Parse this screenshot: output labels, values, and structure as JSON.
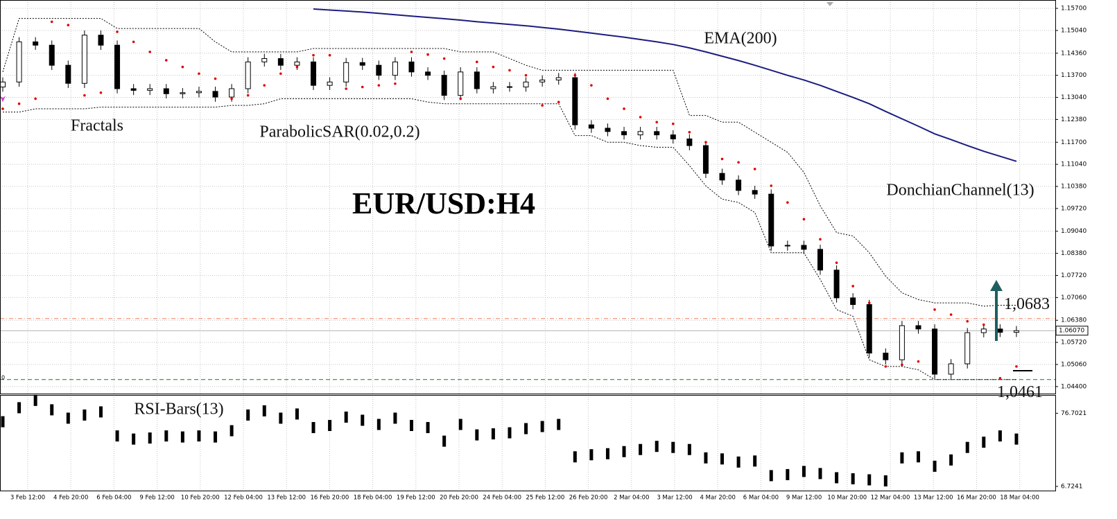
{
  "chart_data": {
    "type": "candlestick",
    "title": "EUR/USD:H4",
    "grid": true,
    "up_color": "#ffffff",
    "down_color": "#000000",
    "categories": [
      "3 Feb 12:00",
      "4 Feb 20:00",
      "6 Feb 04:00",
      "9 Feb 12:00",
      "10 Feb 20:00",
      "12 Feb 04:00",
      "13 Feb 12:00",
      "16 Feb 20:00",
      "18 Feb 04:00",
      "19 Feb 12:00",
      "20 Feb 20:00",
      "24 Feb 04:00",
      "25 Feb 12:00",
      "26 Feb 20:00",
      "2 Mar 04:00",
      "3 Mar 12:00",
      "4 Mar 20:00",
      "6 Mar 04:00",
      "9 Mar 12:00",
      "10 Mar 20:00",
      "12 Mar 04:00",
      "13 Mar 12:00",
      "16 Mar 20:00",
      "18 Mar 04:00"
    ],
    "candles": [
      [
        1.1335,
        1.1364,
        1.1321,
        1.135
      ],
      [
        1.135,
        1.1484,
        1.1336,
        1.147
      ],
      [
        1.147,
        1.1484,
        1.1446,
        1.146
      ],
      [
        1.146,
        1.1474,
        1.1386,
        1.14
      ],
      [
        1.14,
        1.1414,
        1.1332,
        1.1346
      ],
      [
        1.1346,
        1.1504,
        1.1332,
        1.149
      ],
      [
        1.149,
        1.1504,
        1.1446,
        1.146
      ],
      [
        1.146,
        1.1474,
        1.1316,
        1.133
      ],
      [
        1.133,
        1.1344,
        1.1311,
        1.1325
      ],
      [
        1.1325,
        1.1344,
        1.1311,
        1.133
      ],
      [
        1.133,
        1.1344,
        1.1301,
        1.1315
      ],
      [
        1.1315,
        1.1332,
        1.1301,
        1.1318
      ],
      [
        1.1318,
        1.1336,
        1.1304,
        1.1322
      ],
      [
        1.1322,
        1.1336,
        1.1291,
        1.1305
      ],
      [
        1.1305,
        1.1344,
        1.1291,
        1.133
      ],
      [
        1.133,
        1.1424,
        1.1316,
        1.141
      ],
      [
        1.141,
        1.1434,
        1.1396,
        1.142
      ],
      [
        1.142,
        1.1434,
        1.1386,
        1.14
      ],
      [
        1.14,
        1.1424,
        1.1386,
        1.141
      ],
      [
        1.141,
        1.1424,
        1.1326,
        1.134
      ],
      [
        1.134,
        1.1364,
        1.1326,
        1.135
      ],
      [
        1.135,
        1.1422,
        1.1336,
        1.1408
      ],
      [
        1.1408,
        1.1422,
        1.1386,
        1.14
      ],
      [
        1.14,
        1.1414,
        1.1356,
        1.137
      ],
      [
        1.137,
        1.1424,
        1.1356,
        1.141
      ],
      [
        1.141,
        1.1424,
        1.1366,
        1.138
      ],
      [
        1.138,
        1.1394,
        1.1356,
        1.137
      ],
      [
        1.137,
        1.1384,
        1.1296,
        1.131
      ],
      [
        1.131,
        1.1394,
        1.1296,
        1.138
      ],
      [
        1.138,
        1.1394,
        1.1316,
        1.133
      ],
      [
        1.133,
        1.135,
        1.1316,
        1.1336
      ],
      [
        1.1336,
        1.135,
        1.1321,
        1.1335
      ],
      [
        1.1335,
        1.1364,
        1.1321,
        1.135
      ],
      [
        1.135,
        1.137,
        1.1336,
        1.1356
      ],
      [
        1.1356,
        1.1377,
        1.1342,
        1.1363
      ],
      [
        1.1363,
        1.1377,
        1.1208,
        1.1222
      ],
      [
        1.1222,
        1.1236,
        1.1198,
        1.1212
      ],
      [
        1.1212,
        1.1226,
        1.1188,
        1.1202
      ],
      [
        1.1202,
        1.1216,
        1.1178,
        1.1192
      ],
      [
        1.1192,
        1.1216,
        1.1178,
        1.1202
      ],
      [
        1.1202,
        1.1216,
        1.1178,
        1.1192
      ],
      [
        1.1192,
        1.1206,
        1.1166,
        1.118
      ],
      [
        1.118,
        1.1194,
        1.1146,
        1.116
      ],
      [
        1.116,
        1.1174,
        1.1063,
        1.1077
      ],
      [
        1.1077,
        1.1091,
        1.1043,
        1.1057
      ],
      [
        1.1057,
        1.1071,
        1.1012,
        1.1026
      ],
      [
        1.1026,
        1.104,
        1.1001,
        1.1015
      ],
      [
        1.1015,
        1.1029,
        1.0846,
        1.086
      ],
      [
        1.086,
        1.0876,
        1.0846,
        1.0862
      ],
      [
        1.0862,
        1.0876,
        1.0836,
        1.085
      ],
      [
        1.085,
        1.0864,
        1.0774,
        1.0788
      ],
      [
        1.0788,
        1.0802,
        1.0691,
        1.0705
      ],
      [
        1.0705,
        1.0719,
        1.0671,
        1.0685
      ],
      [
        1.0685,
        1.0699,
        1.0526,
        1.054
      ],
      [
        1.054,
        1.0554,
        1.0506,
        1.052
      ],
      [
        1.052,
        1.0636,
        1.0506,
        1.0622
      ],
      [
        1.0622,
        1.0636,
        1.0598,
        1.0612
      ],
      [
        1.0612,
        1.0626,
        1.0463,
        1.0477
      ],
      [
        1.0477,
        1.0522,
        1.0463,
        1.0508
      ],
      [
        1.0508,
        1.0615,
        1.0494,
        1.0601
      ],
      [
        1.0601,
        1.0626,
        1.0587,
        1.0612
      ],
      [
        1.0612,
        1.0626,
        1.0588,
        1.0602
      ],
      [
        1.0602,
        1.0621,
        1.0588,
        1.0607
      ]
    ],
    "ylim": [
      1.0419,
      1.1595
    ],
    "yticks": [
      {
        "value": 1.157,
        "label": "1.15700"
      },
      {
        "value": 1.1504,
        "label": "1.15040"
      },
      {
        "value": 1.1436,
        "label": "1.14360"
      },
      {
        "value": 1.137,
        "label": "1.13700"
      },
      {
        "value": 1.1304,
        "label": "1.13040"
      },
      {
        "value": 1.1238,
        "label": "1.12380"
      },
      {
        "value": 1.117,
        "label": "1.11700"
      },
      {
        "value": 1.1104,
        "label": "1.11040"
      },
      {
        "value": 1.1038,
        "label": "1.10380"
      },
      {
        "value": 1.0972,
        "label": "1.09720"
      },
      {
        "value": 1.0904,
        "label": "1.09040"
      },
      {
        "value": 1.0838,
        "label": "1.08380"
      },
      {
        "value": 1.0772,
        "label": "1.07720"
      },
      {
        "value": 1.0706,
        "label": "1.07060"
      },
      {
        "value": 1.0638,
        "label": "1.06380"
      },
      {
        "value": 1.0572,
        "label": "1.05720"
      },
      {
        "value": 1.0506,
        "label": "1.05060"
      },
      {
        "value": 1.044,
        "label": "1.04400"
      }
    ],
    "current_price": {
      "value": 1.0607,
      "label": "1.06070"
    },
    "resistance_line": 1.0643,
    "support_line": 1.0461,
    "levels": [
      {
        "value": 1.0683,
        "label": "1,0683"
      },
      {
        "value": 1.0461,
        "label": "1,0461"
      }
    ],
    "fractals": {
      "label": "Fractals",
      "color": "#cc44cc"
    },
    "sar": {
      "label": "ParabolicSAR(0.02,0.2)",
      "color": "#e00000",
      "values": [
        1.127,
        1.1285,
        1.13,
        1.153,
        1.152,
        1.131,
        1.1318,
        1.15,
        1.147,
        1.144,
        1.1415,
        1.1395,
        1.1375,
        1.136,
        1.13,
        1.131,
        1.134,
        1.1375,
        1.1395,
        1.143,
        1.143,
        1.133,
        1.1335,
        1.134,
        1.1345,
        1.144,
        1.1432,
        1.142,
        1.13,
        1.141,
        1.1395,
        1.1385,
        1.137,
        1.128,
        1.129,
        1.137,
        1.134,
        1.13,
        1.127,
        1.1245,
        1.123,
        1.1225,
        1.12,
        1.117,
        1.112,
        1.111,
        1.109,
        1.104,
        1.099,
        1.094,
        1.088,
        1.081,
        1.074,
        1.069,
        1.05,
        1.0505,
        1.0515,
        1.067,
        1.0655,
        1.0635,
        1.0625,
        1.0465,
        1.05
      ]
    },
    "ema": {
      "label": "EMA(200)",
      "color": "#1c1c80",
      "values": [
        null,
        null,
        null,
        null,
        null,
        null,
        null,
        null,
        null,
        null,
        null,
        null,
        null,
        null,
        null,
        null,
        null,
        null,
        null,
        1.1568,
        1.1565,
        1.1562,
        1.1559,
        1.1555,
        1.1551,
        1.1547,
        1.1543,
        1.1539,
        1.1535,
        1.153,
        1.1526,
        1.1522,
        1.1518,
        1.1513,
        1.1508,
        1.1502,
        1.1496,
        1.149,
        1.1484,
        1.1477,
        1.147,
        1.1462,
        1.1452,
        1.144,
        1.1427,
        1.1414,
        1.14,
        1.1385,
        1.137,
        1.1356,
        1.134,
        1.1322,
        1.1304,
        1.1285,
        1.1262,
        1.124,
        1.1218,
        1.1195,
        1.1178,
        1.116,
        1.1143,
        1.1128,
        1.1113
      ]
    },
    "donchian": {
      "label": "DonchianChannel(13)",
      "upper": [
        1.138,
        1.154,
        1.154,
        1.154,
        1.154,
        1.154,
        1.154,
        1.151,
        1.151,
        1.151,
        1.151,
        1.151,
        1.151,
        1.147,
        1.144,
        1.144,
        1.144,
        1.144,
        1.144,
        1.145,
        1.145,
        1.145,
        1.145,
        1.145,
        1.145,
        1.145,
        1.145,
        1.145,
        1.144,
        1.144,
        1.144,
        1.142,
        1.14,
        1.1385,
        1.1385,
        1.1385,
        1.1385,
        1.1385,
        1.1385,
        1.1385,
        1.1385,
        1.1385,
        1.125,
        1.125,
        1.123,
        1.123,
        1.12,
        1.117,
        1.114,
        1.108,
        1.098,
        1.09,
        1.089,
        1.084,
        1.077,
        1.072,
        1.07,
        1.069,
        1.069,
        1.069,
        1.068,
        1.0683,
        1.0683
      ],
      "lower": [
        1.126,
        1.126,
        1.127,
        1.127,
        1.127,
        1.127,
        1.1275,
        1.1275,
        1.1275,
        1.1275,
        1.1275,
        1.1275,
        1.1275,
        1.1275,
        1.128,
        1.128,
        1.1285,
        1.13,
        1.13,
        1.13,
        1.13,
        1.13,
        1.13,
        1.13,
        1.13,
        1.13,
        1.129,
        1.1285,
        1.1285,
        1.1285,
        1.1285,
        1.1285,
        1.1285,
        1.1285,
        1.1285,
        1.119,
        1.119,
        1.117,
        1.117,
        1.116,
        1.1155,
        1.1155,
        1.11,
        1.104,
        1.1,
        1.099,
        1.096,
        1.084,
        1.084,
        1.084,
        1.076,
        1.067,
        1.065,
        1.052,
        1.05,
        1.05,
        1.049,
        1.0461,
        1.0461,
        1.0461,
        1.0461,
        1.0461,
        1.0461
      ]
    },
    "rsi": {
      "label": "RSI-Bars(13)",
      "window_label": "0",
      "ylim": [
        2.7,
        94.2
      ],
      "yticks": [
        76.7021,
        6.7241
      ],
      "values": [
        68.6,
        82,
        89,
        80,
        72,
        75,
        78,
        55,
        52,
        53,
        55,
        54,
        55,
        54,
        60,
        75,
        79,
        72,
        76,
        63,
        65,
        73,
        70,
        66,
        72,
        65,
        63,
        50,
        66,
        56,
        57,
        58,
        62,
        64,
        66,
        35,
        37,
        38,
        40,
        42,
        45,
        44,
        42,
        34,
        33,
        30,
        31,
        17,
        18,
        21,
        19,
        15,
        14,
        13,
        12,
        34,
        35,
        26,
        32,
        44,
        49,
        55,
        52
      ]
    }
  }
}
